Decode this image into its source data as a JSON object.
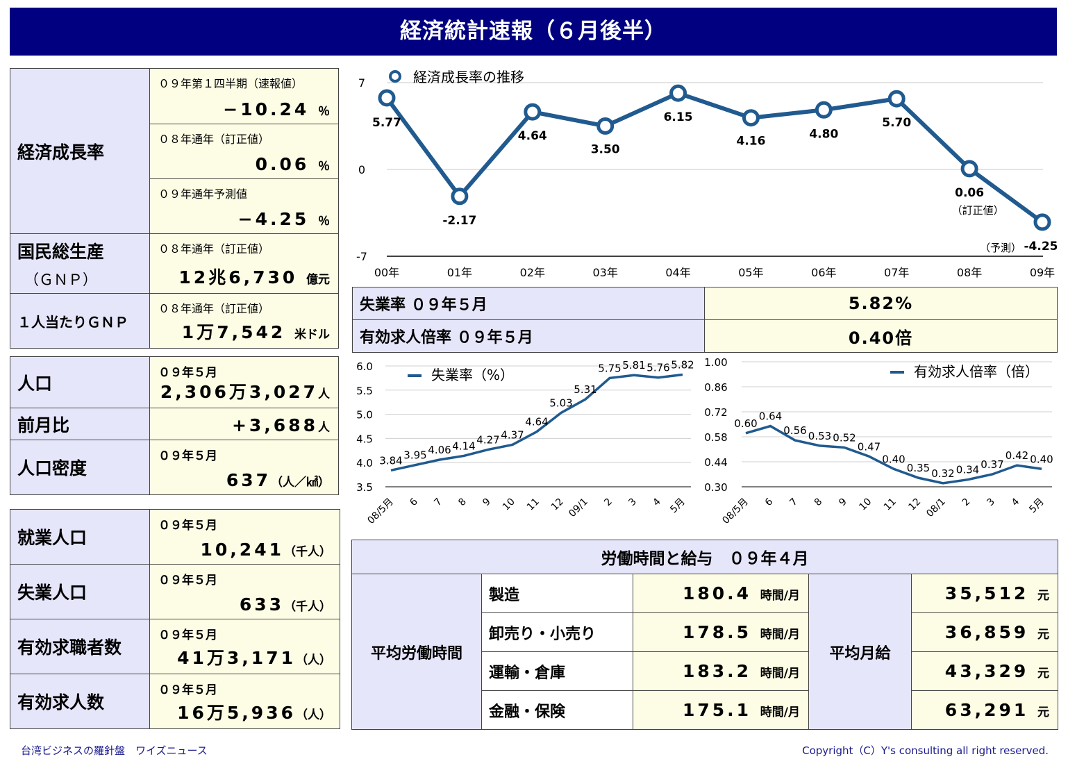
{
  "title": "経済統計速報（６月後半）",
  "left1": {
    "rows": [
      {
        "label": "経済成長率",
        "sub1": "０９年第１四半期（速報値）",
        "val1": "−10.24",
        "unit1": "％",
        "sub2": "０８年通年（訂正値）",
        "val2": "0.06",
        "unit2": "％",
        "sub3": "０９年通年予測値",
        "val3": "−4.25",
        "unit3": "％"
      },
      {
        "label": "国民総生産",
        "label2": "（ＧＮＰ）",
        "sub": "０８年通年（訂正値）",
        "val": "12兆6,730",
        "unit": "億元"
      },
      {
        "label": "１人当たりＧＮＰ",
        "sub": "０８年通年（訂正値）",
        "val": "1万7,542",
        "unit": "米ドル"
      }
    ]
  },
  "left2": {
    "pop_label": "人口",
    "pop_sub": "０９年５月",
    "pop_val": "2,306万3,027",
    "pop_unit": "人",
    "mom_label": "前月比",
    "mom_val": "+3,688",
    "mom_unit": "人",
    "dens_label": "人口密度",
    "dens_sub": "０９年５月",
    "dens_val": "637",
    "dens_unit": "（人／㎢）"
  },
  "left3": {
    "rows": [
      {
        "label": "就業人口",
        "sub": "０９年５月",
        "val": "10,241",
        "unit": "（千人）"
      },
      {
        "label": "失業人口",
        "sub": "０９年５月",
        "val": "633",
        "unit": "（千人）"
      },
      {
        "label": "有効求職者数",
        "sub": "０９年５月",
        "val": "41万3,171",
        "unit": "（人）"
      },
      {
        "label": "有効求人数",
        "sub": "０９年５月",
        "val": "16万5,936",
        "unit": "（人）"
      }
    ]
  },
  "rates": {
    "unemp_label": "失業率 ０９年５月",
    "unemp_val": "5.82%",
    "job_label": "有効求人倍率 ０９年５月",
    "job_val": "0.40倍"
  },
  "labor": {
    "header": "労働時間と給与　０９年４月",
    "hours_label": "平均労働時間",
    "wage_label": "平均月給",
    "hour_unit": "時間/月",
    "wage_unit": "元",
    "rows": [
      {
        "cat": "製造",
        "hours": "180.4",
        "wage": "35,512"
      },
      {
        "cat": "卸売り・小売り",
        "hours": "178.5",
        "wage": "36,859"
      },
      {
        "cat": "運輸・倉庫",
        "hours": "183.2",
        "wage": "43,329"
      },
      {
        "cat": "金融・保険",
        "hours": "175.1",
        "wage": "63,291"
      }
    ]
  },
  "footer": {
    "left": "台湾ビジネスの羅針盤　ワイズニュース",
    "right": "Copyright（C）Y's consulting all right reserved."
  },
  "colors": {
    "accent": "#000080",
    "series": "#205a8f",
    "label_bg": "#e6e6fb",
    "value_bg": "#fdfde6"
  },
  "chart_data": [
    {
      "type": "line",
      "legend": "経済成長率の推移",
      "categories": [
        "00年",
        "01年",
        "02年",
        "03年",
        "04年",
        "05年",
        "06年",
        "07年",
        "08年",
        "09年"
      ],
      "values": [
        5.77,
        -2.17,
        4.64,
        3.5,
        6.15,
        4.16,
        4.8,
        5.7,
        0.06,
        -4.25
      ],
      "data_labels": [
        "5.77",
        "-2.17",
        "4.64",
        "3.50",
        "6.15",
        "4.16",
        "4.80",
        "5.70",
        "0.06",
        "-4.25"
      ],
      "annotations": {
        "8": "（訂正値）",
        "9": "（予測）"
      },
      "yticks": [
        "7",
        "0",
        "-7"
      ],
      "ylim": [
        -7,
        7
      ],
      "legend_position": "top-left",
      "grid": true
    },
    {
      "type": "line",
      "legend": "失業率（%）",
      "categories": [
        "08/5月",
        "6",
        "7",
        "8",
        "9",
        "10",
        "11",
        "12",
        "09/1",
        "2",
        "3",
        "4",
        "5月"
      ],
      "values": [
        3.84,
        3.95,
        4.06,
        4.14,
        4.27,
        4.37,
        4.64,
        5.03,
        5.31,
        5.75,
        5.81,
        5.76,
        5.82
      ],
      "data_labels": [
        "3.84",
        "3.95",
        "4.06",
        "4.14",
        "4.27",
        "4.37",
        "4.64",
        "5.03",
        "5.31",
        "5.75",
        "5.81",
        "5.76",
        "5.82"
      ],
      "yticks": [
        "6.0",
        "5.5",
        "5.0",
        "4.5",
        "4.0",
        "3.5"
      ],
      "ylim": [
        3.5,
        6.0
      ],
      "legend_position": "top-left",
      "grid": true
    },
    {
      "type": "line",
      "legend": "有効求人倍率（倍）",
      "categories": [
        "08/5月",
        "6",
        "7",
        "8",
        "9",
        "10",
        "11",
        "12",
        "08/1",
        "2",
        "3",
        "4",
        "5月"
      ],
      "values": [
        0.6,
        0.64,
        0.56,
        0.53,
        0.52,
        0.47,
        0.4,
        0.35,
        0.32,
        0.34,
        0.37,
        0.42,
        0.4
      ],
      "data_labels": [
        "0.60",
        "0.64",
        "0.56",
        "0.53",
        "0.52",
        "0.47",
        "0.40",
        "0.35",
        "0.32",
        "0.34",
        "0.37",
        "0.42",
        "0.40"
      ],
      "yticks": [
        "1.00",
        "0.86",
        "0.72",
        "0.58",
        "0.44",
        "0.30"
      ],
      "ylim": [
        0.3,
        1.0
      ],
      "legend_position": "top-right",
      "grid": true
    }
  ]
}
